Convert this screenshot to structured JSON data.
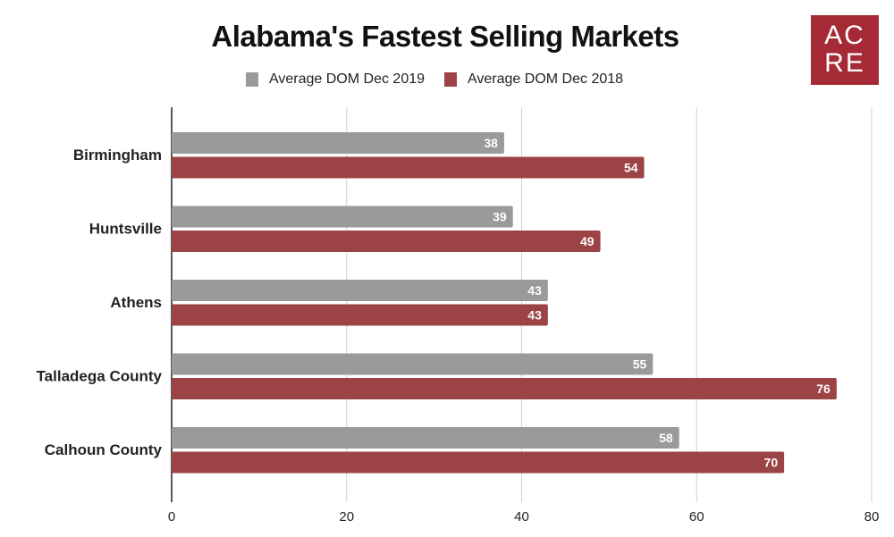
{
  "chart_data": {
    "type": "bar",
    "orientation": "horizontal",
    "title": "Alabama's Fastest Selling Markets",
    "categories": [
      "Birmingham",
      "Huntsville",
      "Athens",
      "Talladega County",
      "Calhoun County"
    ],
    "series": [
      {
        "name": "Average DOM Dec 2019",
        "color": "#9a9a9a",
        "values": [
          38,
          39,
          43,
          55,
          58
        ]
      },
      {
        "name": "Average DOM Dec 2018",
        "color": "#9c4346",
        "values": [
          54,
          49,
          43,
          76,
          70
        ]
      }
    ],
    "xlim": [
      0,
      80
    ],
    "xticks": [
      "0",
      "20",
      "40",
      "60",
      "80"
    ],
    "grid": true,
    "legend": "top"
  },
  "logo": {
    "line1": "AC",
    "line2": "RE"
  }
}
